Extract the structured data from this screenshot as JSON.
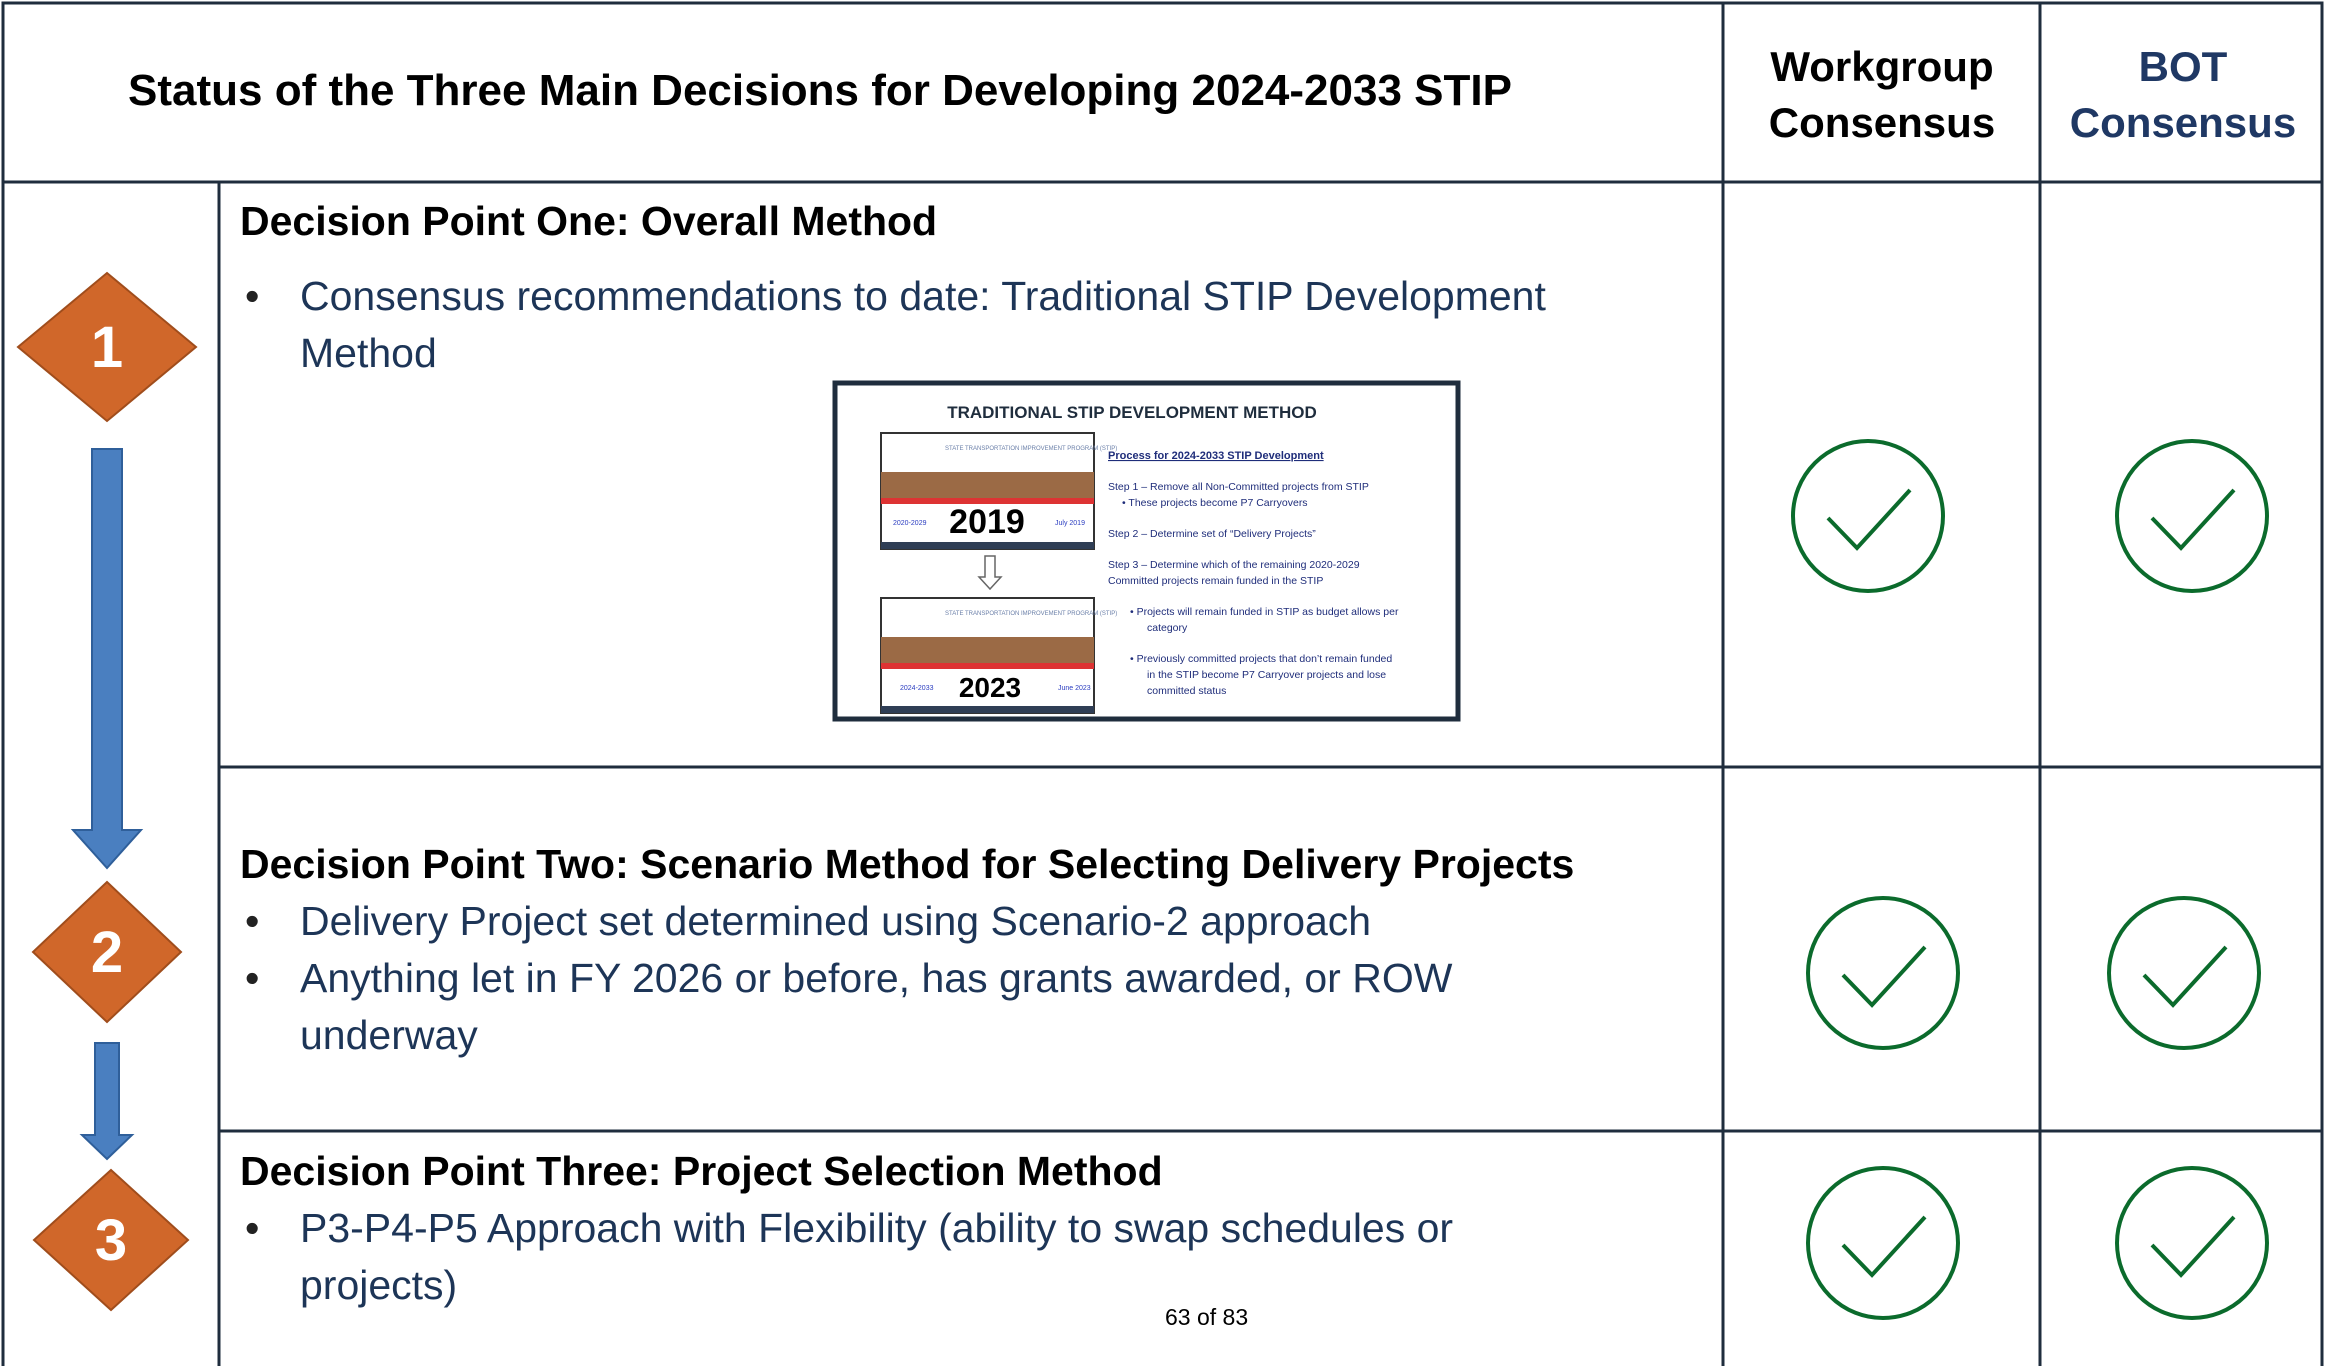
{
  "header": {
    "title": "Status of the Three Main Decisions for  Developing 2024-2033 STIP",
    "columns": [
      "Workgroup Consensus",
      "BOT Consensus"
    ]
  },
  "rows": [
    {
      "number": "1",
      "title": "Decision Point One:  Overall Method",
      "bullets": [
        "Consensus recommendations to date: Traditional STIP Development Method"
      ]
    },
    {
      "number": "2",
      "title": "Decision Point Two: Scenario Method for Selecting Delivery Projects",
      "bullets": [
        "Delivery Project set determined using Scenario-2 approach",
        "Anything let in FY 2026 or before, has grants awarded, or ROW underway"
      ]
    },
    {
      "number": "3",
      "title": "Decision Point Three: Project Selection Method",
      "bullets": [
        "P3-P4-P5 Approach with Flexibility (ability to swap schedules or projects)"
      ]
    }
  ],
  "inset": {
    "title": "TRADITIONAL STIP DEVELOPMENT METHOD",
    "cover_label": "STATE TRANSPORTATION IMPROVEMENT PROGRAM (STIP)",
    "cover1": {
      "year": "2019",
      "range": "2020-2029",
      "date": "July 2019"
    },
    "cover2": {
      "year": "2023",
      "range": "2024-2033",
      "date": "June 2023"
    },
    "heading": "Process for 2024-2033 STIP Development",
    "lines": [
      "Step 1 – Remove all Non-Committed projects from STIP",
      "•   These projects become P7 Carryovers",
      "Step 2 – Determine set of “Delivery Projects”",
      "Step 3 – Determine which of the remaining 2020-2029",
      "Committed projects remain funded in the STIP",
      "•   Projects will remain funded in STIP as budget allows per",
      "category",
      "•   Previously committed projects that don’t remain funded",
      "in the STIP become P7 Carryover projects and lose",
      "committed status"
    ]
  },
  "footer": {
    "page": "63 of 83"
  }
}
